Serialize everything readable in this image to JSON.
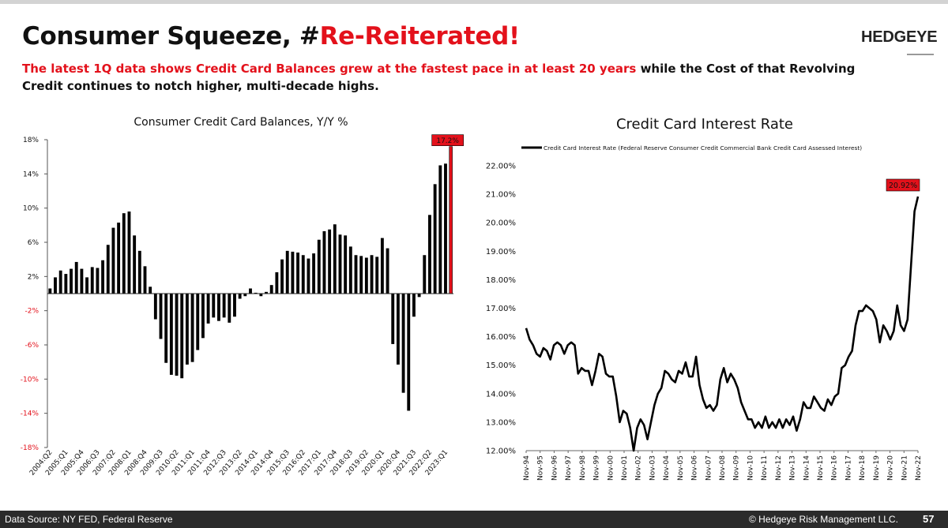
{
  "header": {
    "title_black": "Consumer Squeeze, #",
    "title_red": "Re-Reiterated!",
    "logo": "HEDGEYE",
    "subtitle_red": "The latest 1Q data shows Credit Card Balances grew at the fastest pace in at least 20 years",
    "subtitle_black": " while the Cost of that Revolving Credit continues to notch higher, multi-decade highs."
  },
  "footer": {
    "source": "Data Source: NY FED, Federal Reserve",
    "copyright": "© Hedgeye Risk Management LLC.",
    "page_number": "57"
  },
  "colors": {
    "accent_red": "#e3111b",
    "bar_black": "#000000",
    "last_bar_red": "#e3111b",
    "line_black": "#000000",
    "callout_fill": "#e3111b"
  },
  "chart_data": [
    {
      "type": "bar",
      "title": "Consumer Credit Card Balances, Y/Y %",
      "xlabel": "",
      "ylabel": "",
      "ylim": [
        -18,
        18
      ],
      "yticks": [
        -18,
        -14,
        -10,
        -6,
        -2,
        2,
        6,
        10,
        14,
        18
      ],
      "ytick_labels": [
        "-18%",
        "-14%",
        "-10%",
        "-6%",
        "-2%",
        "2%",
        "6%",
        "10%",
        "14%",
        "18%"
      ],
      "grid": false,
      "xtick_labels": [
        "2004:Q2",
        "2005:Q1",
        "2005:Q4",
        "2006:Q3",
        "2007:Q2",
        "2008:Q1",
        "2008:Q4",
        "2009:Q3",
        "2010:Q2",
        "2011:Q1",
        "2011:Q4",
        "2012:Q3",
        "2013:Q2",
        "2014:Q1",
        "2014:Q4",
        "2015:Q3",
        "2016:Q2",
        "2017:Q1",
        "2017:Q4",
        "2018:Q3",
        "2019:Q2",
        "2020:Q1",
        "2020:Q4",
        "2021:Q3",
        "2022:Q2",
        "2023:Q1"
      ],
      "xtick_every": 3,
      "callout": "17.2%",
      "values": [
        0.6,
        1.9,
        2.7,
        2.3,
        2.9,
        3.7,
        2.9,
        1.9,
        3.1,
        3.0,
        3.9,
        5.7,
        7.7,
        8.3,
        9.4,
        9.6,
        6.8,
        5.0,
        3.2,
        0.8,
        -3.0,
        -5.3,
        -8.1,
        -9.5,
        -9.6,
        -9.9,
        -8.3,
        -8.0,
        -6.6,
        -5.2,
        -3.5,
        -2.8,
        -3.2,
        -2.8,
        -3.4,
        -2.7,
        -0.6,
        -0.3,
        0.6,
        0.1,
        -0.3,
        0.2,
        1.0,
        2.5,
        4.0,
        5.0,
        4.9,
        4.8,
        4.5,
        4.1,
        4.7,
        6.3,
        7.3,
        7.5,
        8.1,
        6.9,
        6.8,
        5.5,
        4.5,
        4.4,
        4.2,
        4.5,
        4.3,
        6.5,
        5.3,
        -5.9,
        -8.3,
        -11.6,
        -13.7,
        -2.7,
        -0.4,
        4.5,
        9.2,
        12.8,
        15.0,
        15.2,
        17.2
      ]
    },
    {
      "type": "line",
      "title": "Credit Card Interest Rate",
      "legend": "Credit Card Interest Rate (Federal Reserve Consumer Credit Commercial Bank Credit Card Assessed Interest)",
      "legend_position": "top-left",
      "xlabel": "",
      "ylabel": "",
      "ylim": [
        12.0,
        22.0
      ],
      "yticks": [
        12,
        13,
        14,
        15,
        16,
        17,
        18,
        19,
        20,
        21,
        22
      ],
      "ytick_labels": [
        "12.00%",
        "13.00%",
        "14.00%",
        "15.00%",
        "16.00%",
        "17.00%",
        "18.00%",
        "19.00%",
        "20.00%",
        "21.00%",
        "22.00%"
      ],
      "grid": false,
      "xtick_labels": [
        "Nov-94",
        "Nov-95",
        "Nov-96",
        "Nov-97",
        "Nov-98",
        "Nov-99",
        "Nov-00",
        "Nov-01",
        "Nov-02",
        "Nov-03",
        "Nov-04",
        "Nov-05",
        "Nov-06",
        "Nov-07",
        "Nov-08",
        "Nov-09",
        "Nov-10",
        "Nov-11",
        "Nov-12",
        "Nov-13",
        "Nov-14",
        "Nov-15",
        "Nov-16",
        "Nov-17",
        "Nov-18",
        "Nov-19",
        "Nov-20",
        "Nov-21",
        "Nov-22"
      ],
      "callout": "20.92%",
      "series": [
        {
          "values": [
            16.3,
            15.9,
            15.7,
            15.4,
            15.3,
            15.6,
            15.5,
            15.2,
            15.7,
            15.8,
            15.7,
            15.4,
            15.7,
            15.8,
            15.7,
            14.7,
            14.9,
            14.8,
            14.8,
            14.3,
            14.8,
            15.4,
            15.3,
            14.7,
            14.6,
            14.6,
            13.9,
            13.0,
            13.4,
            13.3,
            12.8,
            12.0,
            12.8,
            13.1,
            12.9,
            12.4,
            13.0,
            13.6,
            14.0,
            14.2,
            14.8,
            14.7,
            14.5,
            14.4,
            14.8,
            14.7,
            15.1,
            14.6,
            14.6,
            15.3,
            14.3,
            13.8,
            13.5,
            13.6,
            13.4,
            13.6,
            14.5,
            14.9,
            14.4,
            14.7,
            14.5,
            14.2,
            13.7,
            13.4,
            13.1,
            13.1,
            12.8,
            13.0,
            12.8,
            13.2,
            12.8,
            13.0,
            12.8,
            13.1,
            12.8,
            13.1,
            12.9,
            13.2,
            12.7,
            13.1,
            13.7,
            13.5,
            13.5,
            13.9,
            13.7,
            13.5,
            13.4,
            13.8,
            13.6,
            13.9,
            14.0,
            14.9,
            15.0,
            15.3,
            15.5,
            16.4,
            16.9,
            16.9,
            17.1,
            17.0,
            16.9,
            16.6,
            15.8,
            16.4,
            16.2,
            15.9,
            16.2,
            17.1,
            16.4,
            16.2,
            16.6,
            18.5,
            20.4,
            20.92
          ]
        }
      ]
    }
  ]
}
